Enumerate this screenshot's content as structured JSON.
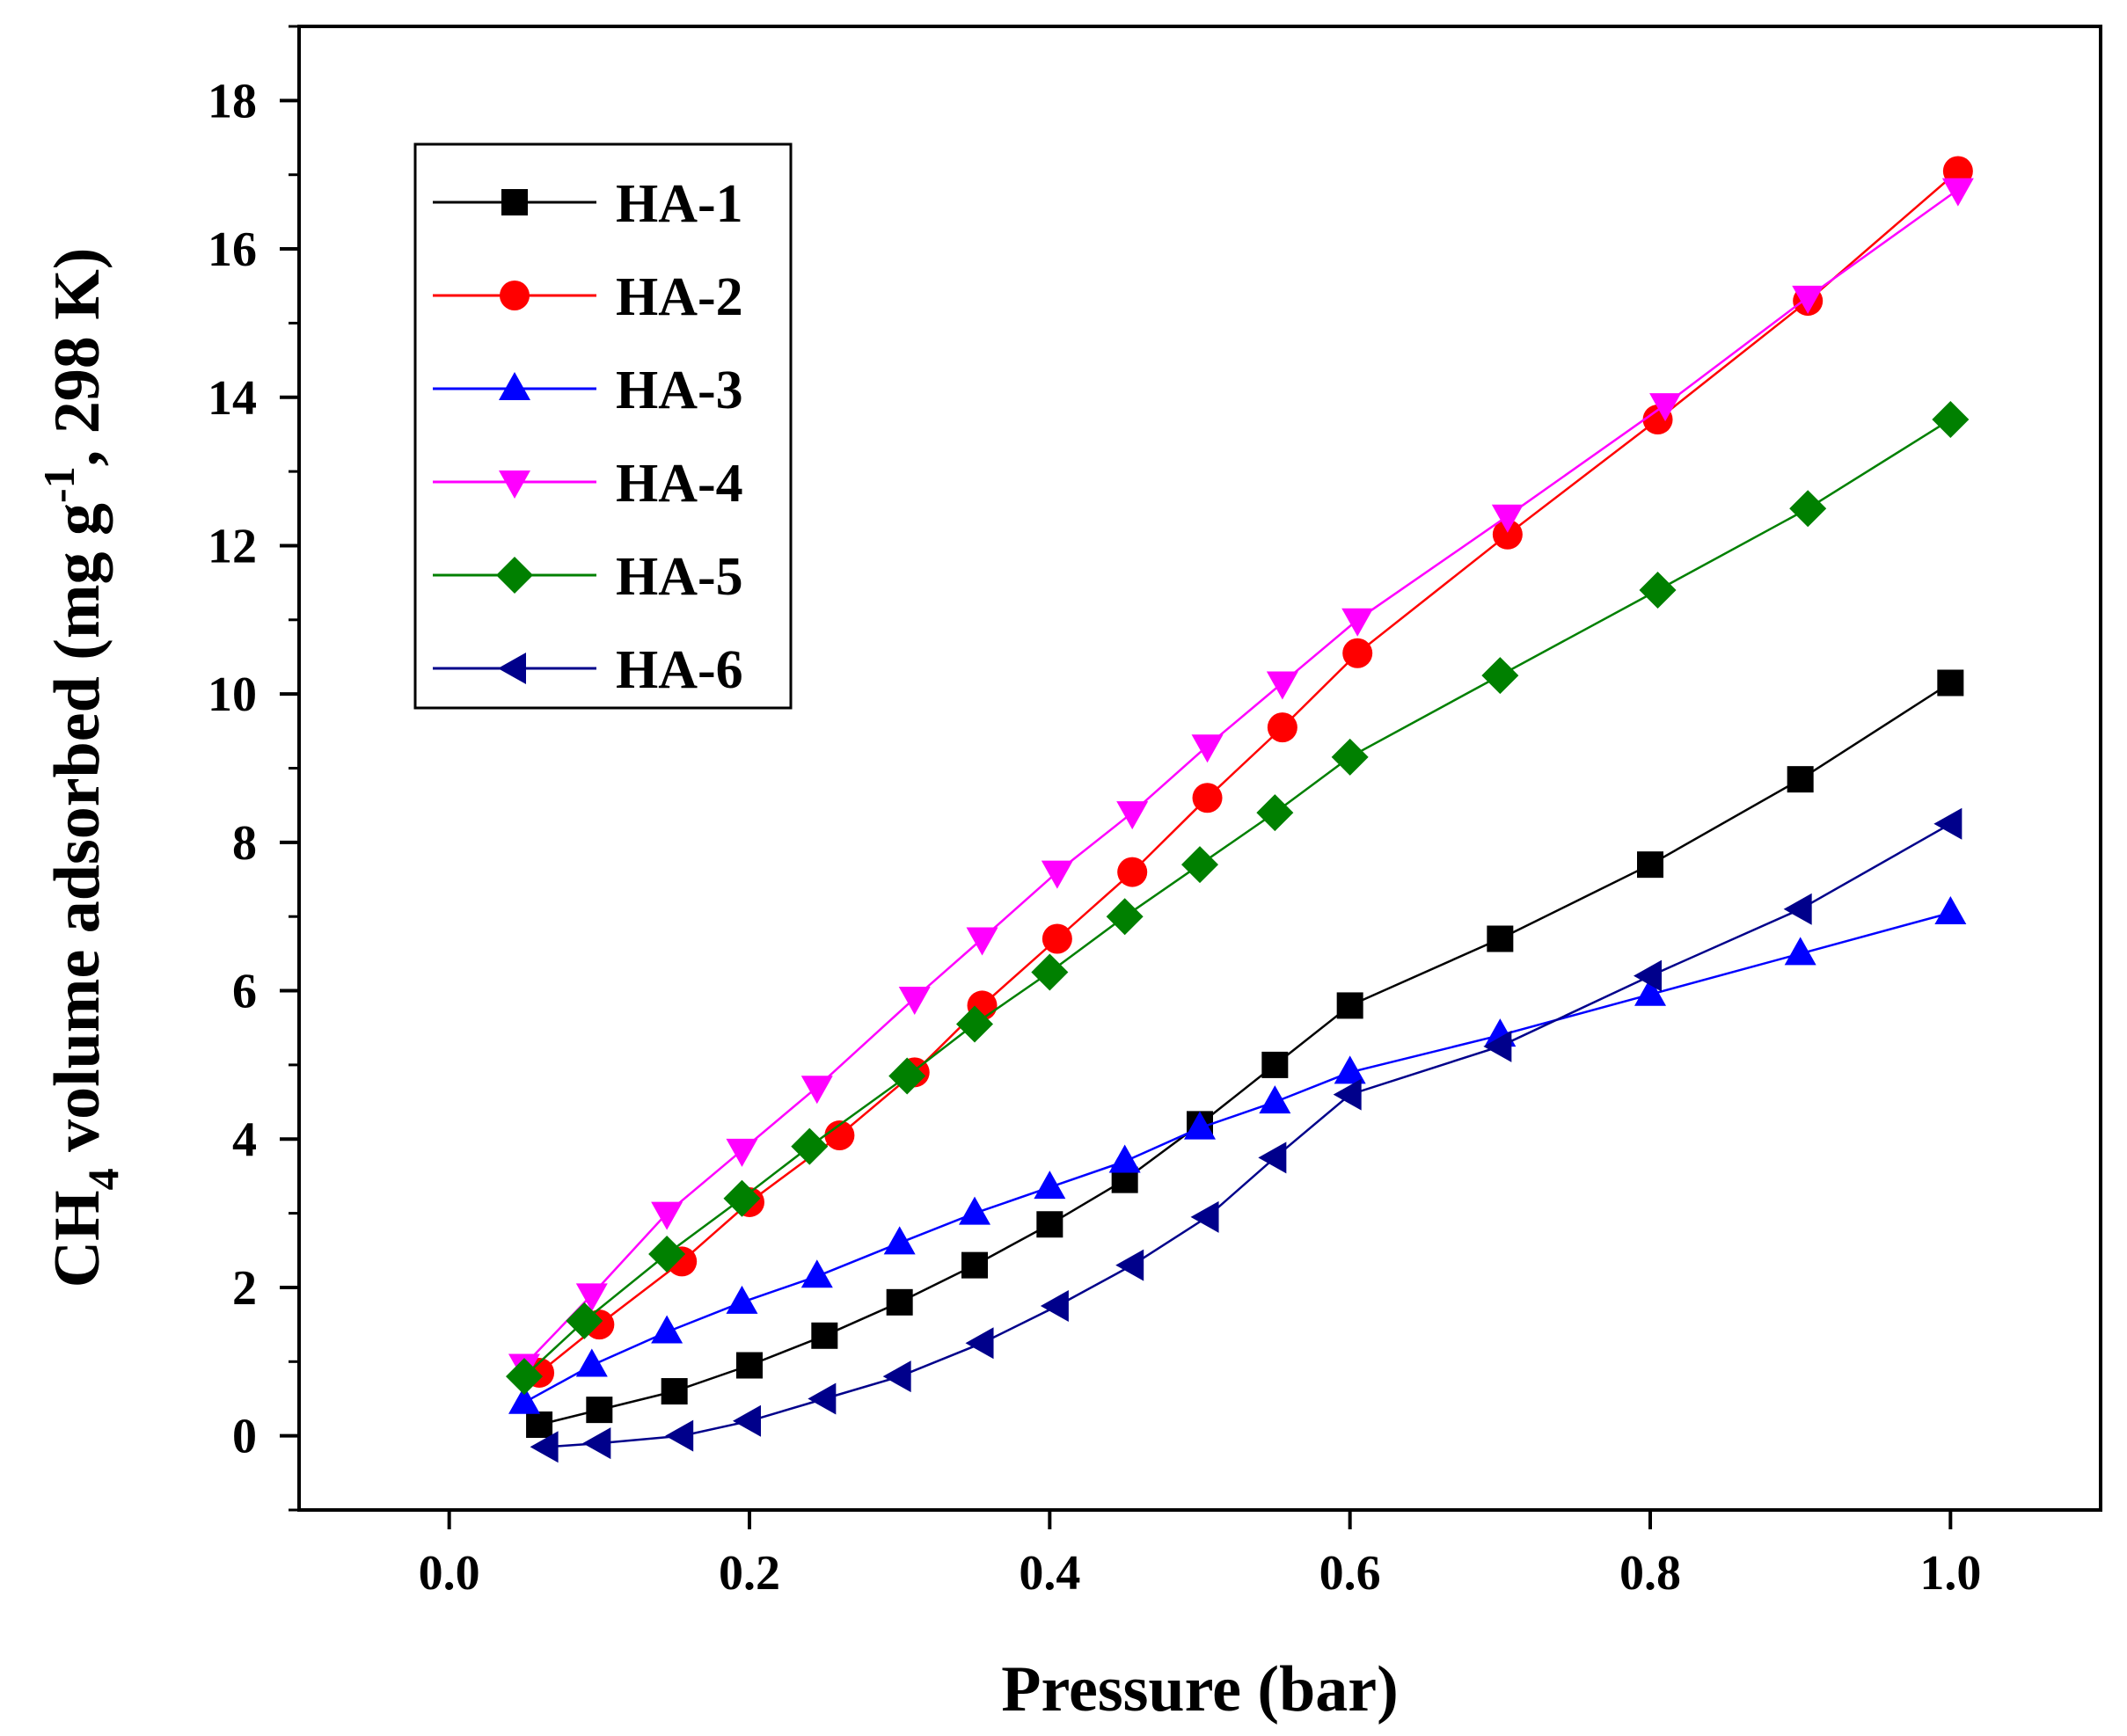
{
  "chart_data": {
    "type": "line",
    "title": "",
    "xlabel": "Pressure (bar)",
    "ylabel": {
      "prefix": "CH",
      "sub": "4",
      "middle": " volume adsorbed (mg g",
      "sup": "-1",
      "suffix": ", 298 K)"
    },
    "xlim": [
      -0.1,
      1.1
    ],
    "ylim": [
      -1,
      19
    ],
    "xticks": [
      0.0,
      0.2,
      0.4,
      0.6,
      0.8,
      1.0
    ],
    "xtick_labels": [
      "0.0",
      "0.2",
      "0.4",
      "0.6",
      "0.8",
      "1.0"
    ],
    "yticks": [
      0,
      2,
      4,
      6,
      8,
      10,
      12,
      14,
      16,
      18
    ],
    "ytick_labels": [
      "0",
      "2",
      "4",
      "6",
      "8",
      "10",
      "12",
      "14",
      "16",
      "18"
    ],
    "legend_position": "top-left",
    "series": [
      {
        "name": "HA-1",
        "color": "#000000",
        "marker": "square",
        "x": [
          0.06,
          0.1,
          0.15,
          0.2,
          0.25,
          0.3,
          0.35,
          0.4,
          0.45,
          0.5,
          0.55,
          0.6,
          0.7,
          0.8,
          0.9,
          1.0
        ],
        "y": [
          0.15,
          0.35,
          0.6,
          0.95,
          1.35,
          1.8,
          2.3,
          2.85,
          3.45,
          4.2,
          5.0,
          5.8,
          6.7,
          7.7,
          8.85,
          10.15
        ]
      },
      {
        "name": "HA-2",
        "color": "#ff0000",
        "marker": "circle",
        "x": [
          0.06,
          0.1,
          0.155,
          0.2,
          0.26,
          0.31,
          0.355,
          0.405,
          0.455,
          0.505,
          0.555,
          0.605,
          0.705,
          0.805,
          0.905,
          1.005
        ],
        "y": [
          0.85,
          1.5,
          2.35,
          3.15,
          4.05,
          4.9,
          5.8,
          6.7,
          7.6,
          8.6,
          9.55,
          10.55,
          12.15,
          13.7,
          15.3,
          17.05
        ]
      },
      {
        "name": "HA-3",
        "color": "#0000ff",
        "marker": "triangle-up",
        "x": [
          0.05,
          0.095,
          0.145,
          0.195,
          0.245,
          0.3,
          0.35,
          0.4,
          0.45,
          0.5,
          0.55,
          0.6,
          0.7,
          0.8,
          0.9,
          1.0
        ],
        "y": [
          0.45,
          0.95,
          1.4,
          1.8,
          2.15,
          2.6,
          3.0,
          3.35,
          3.7,
          4.15,
          4.5,
          4.9,
          5.4,
          5.95,
          6.5,
          7.05
        ]
      },
      {
        "name": "HA-4",
        "color": "#ff00ff",
        "marker": "triangle-down",
        "x": [
          0.05,
          0.095,
          0.145,
          0.195,
          0.245,
          0.31,
          0.355,
          0.405,
          0.455,
          0.505,
          0.555,
          0.605,
          0.705,
          0.81,
          0.905,
          1.005
        ],
        "y": [
          0.95,
          1.9,
          3.0,
          3.85,
          4.7,
          5.9,
          6.7,
          7.6,
          8.4,
          9.3,
          10.15,
          11.0,
          12.4,
          13.9,
          15.35,
          16.8
        ]
      },
      {
        "name": "HA-5",
        "color": "#008000",
        "marker": "diamond",
        "x": [
          0.05,
          0.09,
          0.145,
          0.195,
          0.24,
          0.305,
          0.35,
          0.4,
          0.45,
          0.5,
          0.55,
          0.6,
          0.7,
          0.805,
          0.905,
          1.0
        ],
        "y": [
          0.8,
          1.55,
          2.45,
          3.2,
          3.9,
          4.85,
          5.55,
          6.25,
          7.0,
          7.7,
          8.4,
          9.15,
          10.25,
          11.4,
          12.5,
          13.7
        ]
      },
      {
        "name": "HA-6",
        "color": "#00008b",
        "marker": "triangle-left",
        "x": [
          0.065,
          0.1,
          0.155,
          0.2,
          0.25,
          0.3,
          0.355,
          0.405,
          0.455,
          0.505,
          0.55,
          0.6,
          0.7,
          0.8,
          0.9,
          1.0
        ],
        "y": [
          -0.15,
          -0.1,
          0.0,
          0.2,
          0.5,
          0.8,
          1.25,
          1.75,
          2.3,
          2.95,
          3.75,
          4.6,
          5.25,
          6.2,
          7.1,
          8.25
        ]
      }
    ]
  }
}
